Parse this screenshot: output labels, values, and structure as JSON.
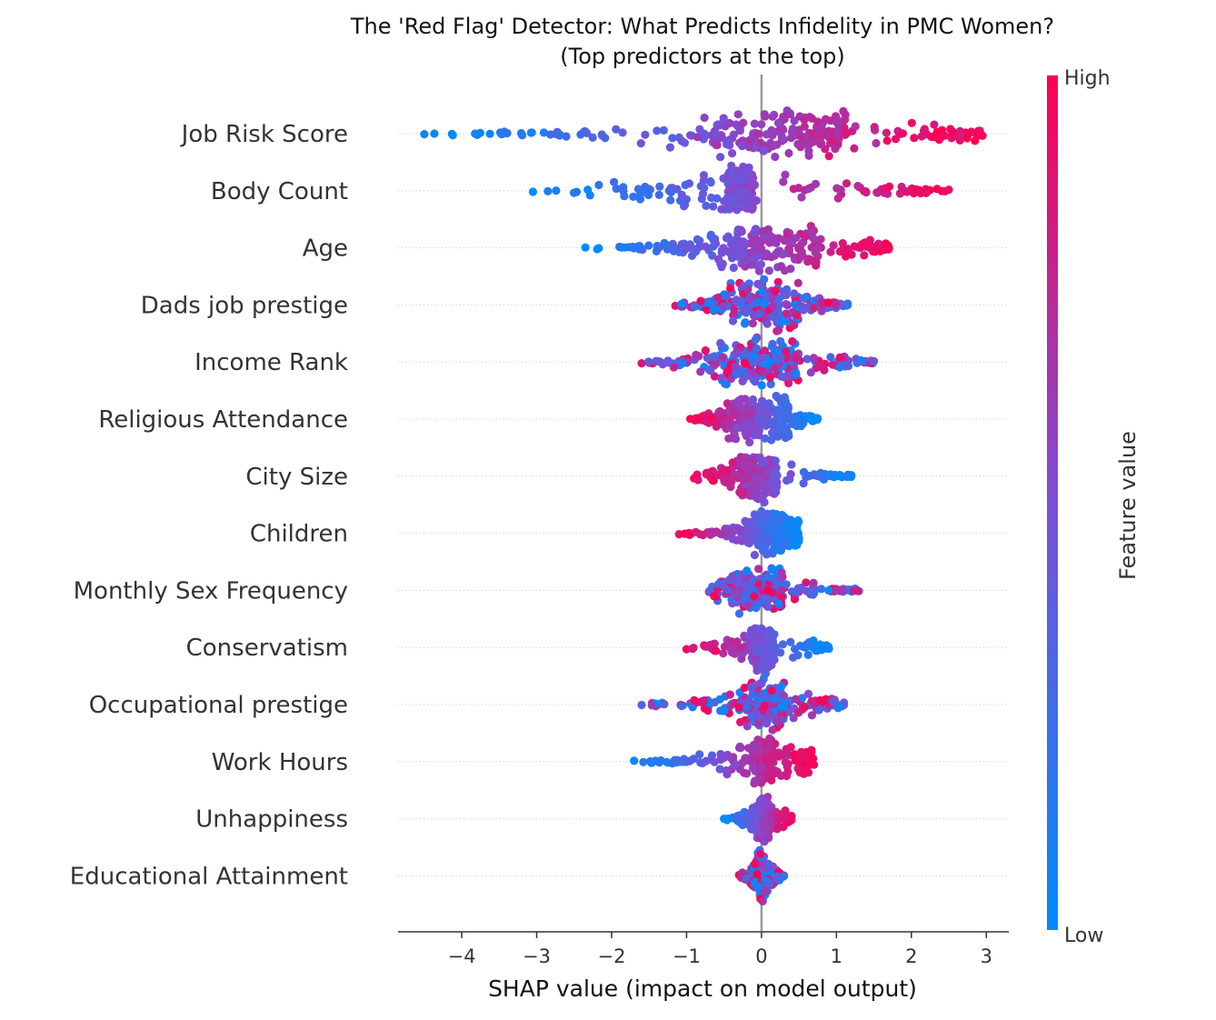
{
  "chart_data": {
    "type": "scatter",
    "subtype": "shap-beeswarm",
    "title_line1": "The 'Red Flag' Detector: What Predicts Infidelity in PMC Women?",
    "title_line2": "(Top predictors at the top)",
    "xlabel": "SHAP value (impact on model output)",
    "xlim": [
      -4.85,
      3.3
    ],
    "xticks": [
      -4,
      -3,
      -2,
      -1,
      0,
      1,
      2,
      3
    ],
    "xtick_labels": [
      "−4",
      "−3",
      "−2",
      "−1",
      "0",
      "1",
      "2",
      "3"
    ],
    "colorbar": {
      "high_label": "High",
      "low_label": "Low",
      "title": "Feature value",
      "high_color": "#ff0052",
      "low_color": "#008bfb"
    },
    "features": [
      {
        "name": "Job Risk Score",
        "min": -4.5,
        "max": 2.95,
        "core": [
          -0.6,
          1.2
        ],
        "spread": 0.32,
        "mode": "pos",
        "tail_left": -4.5,
        "tail_right": 2.95
      },
      {
        "name": "Body Count",
        "min": -3.05,
        "max": 2.5,
        "core": [
          -0.45,
          -0.1
        ],
        "spread": 0.28,
        "mode": "pos",
        "tail_left": -3.05,
        "tail_right": 2.5
      },
      {
        "name": "Age",
        "min": -2.35,
        "max": 1.7,
        "core": [
          -0.6,
          0.8
        ],
        "spread": 0.3,
        "mode": "pos"
      },
      {
        "name": "Dads job prestige",
        "min": -1.15,
        "max": 1.15,
        "core": [
          -0.5,
          0.5
        ],
        "spread": 0.28,
        "mode": "mixed"
      },
      {
        "name": "Income Rank",
        "min": -1.6,
        "max": 1.5,
        "core": [
          -0.6,
          0.5
        ],
        "spread": 0.3,
        "mode": "mixed"
      },
      {
        "name": "Religious Attendance",
        "min": -0.95,
        "max": 0.75,
        "core": [
          -0.5,
          0.4
        ],
        "spread": 0.3,
        "mode": "neg"
      },
      {
        "name": "City Size",
        "min": -0.9,
        "max": 1.2,
        "core": [
          -0.3,
          0.2
        ],
        "spread": 0.28,
        "mode": "neg"
      },
      {
        "name": "Children",
        "min": -1.1,
        "max": 0.5,
        "core": [
          -0.1,
          0.3
        ],
        "spread": 0.3,
        "mode": "neg"
      },
      {
        "name": "Monthly Sex Frequency",
        "min": -0.7,
        "max": 1.3,
        "core": [
          -0.3,
          0.3
        ],
        "spread": 0.28,
        "mode": "mixed"
      },
      {
        "name": "Conservatism",
        "min": -1.0,
        "max": 0.9,
        "core": [
          -0.1,
          0.15
        ],
        "spread": 0.28,
        "mode": "neg"
      },
      {
        "name": "Occupational prestige",
        "min": -1.6,
        "max": 1.1,
        "core": [
          -0.25,
          0.3
        ],
        "spread": 0.28,
        "mode": "mixed"
      },
      {
        "name": "Work Hours",
        "min": -1.7,
        "max": 0.7,
        "core": [
          -0.1,
          0.15
        ],
        "spread": 0.28,
        "mode": "pos"
      },
      {
        "name": "Unhappiness",
        "min": -0.5,
        "max": 0.4,
        "core": [
          -0.05,
          0.1
        ],
        "spread": 0.25,
        "mode": "pos"
      },
      {
        "name": "Educational Attainment",
        "min": -0.3,
        "max": 0.3,
        "core": [
          -0.05,
          0.05
        ],
        "spread": 0.22,
        "mode": "mixed"
      }
    ]
  }
}
